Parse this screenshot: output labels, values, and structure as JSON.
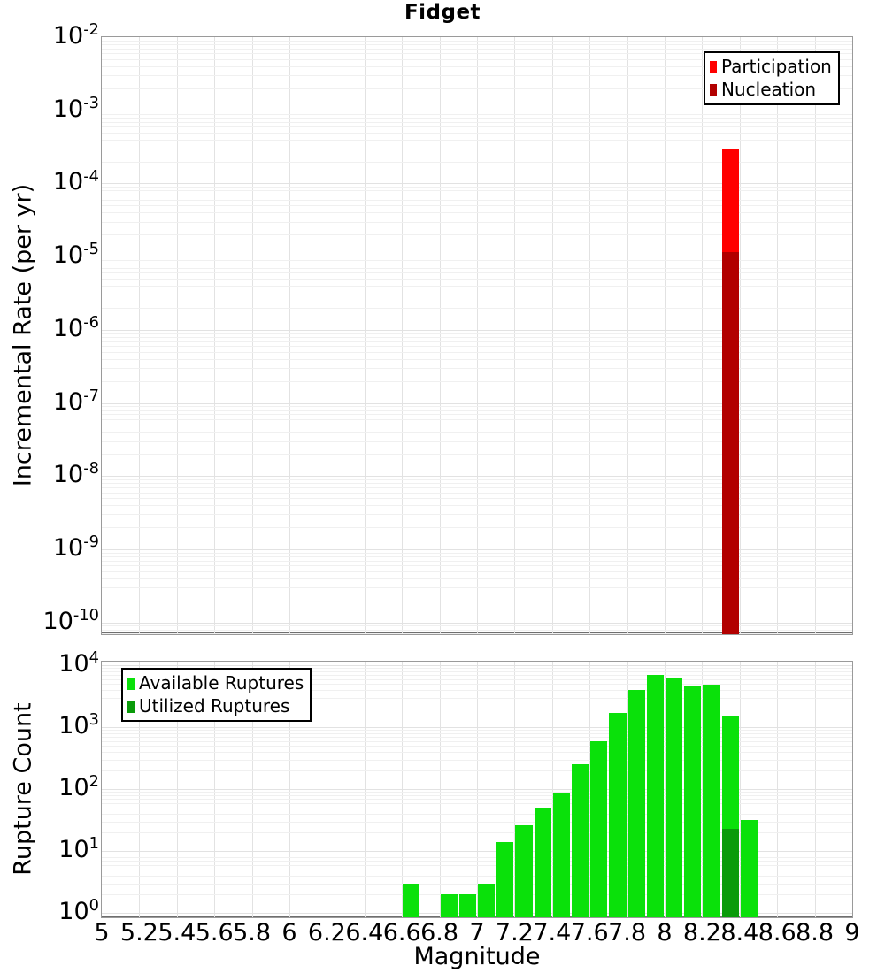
{
  "title": "Fidget",
  "colors": {
    "participation": "#ff0000",
    "nucleation": "#b20000",
    "available": "#0ae10a",
    "utilized": "#0a9b0a",
    "grid_major": "#e2e2e2",
    "grid_minor": "#f0f0f0",
    "frame": "#9a9a9a",
    "axis_line": "#6f6f6f"
  },
  "top_panel": {
    "ylabel": "Incremental Rate (per yr)",
    "legend": [
      {
        "label": "Participation",
        "color_key": "participation"
      },
      {
        "label": "Nucleation",
        "color_key": "nucleation"
      }
    ],
    "y_tick_exponents": [
      "-2",
      "-3",
      "-4",
      "-5",
      "-6",
      "-7",
      "-8",
      "-9",
      "-10"
    ]
  },
  "bottom_panel": {
    "ylabel": "Rupture Count",
    "xlabel": "Magnitude",
    "legend": [
      {
        "label": "Available Ruptures",
        "color_key": "available"
      },
      {
        "label": "Utilized Ruptures",
        "color_key": "utilized"
      }
    ],
    "y_tick_exponents": [
      "4",
      "3",
      "2",
      "1",
      "0"
    ],
    "x_ticks": [
      "5",
      "5.2",
      "5.4",
      "5.6",
      "5.8",
      "6",
      "6.2",
      "6.4",
      "6.6",
      "6.8",
      "7",
      "7.2",
      "7.4",
      "7.6",
      "7.8",
      "8",
      "8.2",
      "8.4",
      "8.6",
      "8.8",
      "9"
    ]
  },
  "chart_data": [
    {
      "panel": "incremental-rate",
      "type": "bar",
      "title": "Fidget",
      "ylabel": "Incremental Rate (per yr)",
      "yscale": "log",
      "ylim": [
        1e-10,
        0.01
      ],
      "xlim": [
        5,
        9
      ],
      "bin_width": 0.1,
      "grid": true,
      "legend_position": "top-right",
      "series": [
        {
          "name": "Participation",
          "color_key": "participation",
          "bins": [
            {
              "mag": 8.3,
              "rate": 0.0003
            }
          ]
        },
        {
          "name": "Nucleation",
          "color_key": "nucleation",
          "bins": [
            {
              "mag": 8.3,
              "rate": 1.15e-05
            }
          ]
        }
      ]
    },
    {
      "panel": "rupture-count",
      "type": "bar",
      "ylabel": "Rupture Count",
      "xlabel": "Magnitude",
      "yscale": "log",
      "ylim": [
        1,
        10000
      ],
      "xlim": [
        5,
        9
      ],
      "bin_width": 0.1,
      "grid": true,
      "legend_position": "top-left",
      "series": [
        {
          "name": "Available Ruptures",
          "color_key": "available",
          "bins": [
            {
              "mag": 6.6,
              "count": 3
            },
            {
              "mag": 6.8,
              "count": 2
            },
            {
              "mag": 6.9,
              "count": 2
            },
            {
              "mag": 7.0,
              "count": 3
            },
            {
              "mag": 7.1,
              "count": 14
            },
            {
              "mag": 7.2,
              "count": 26
            },
            {
              "mag": 7.3,
              "count": 48
            },
            {
              "mag": 7.4,
              "count": 87
            },
            {
              "mag": 7.5,
              "count": 250
            },
            {
              "mag": 7.6,
              "count": 600
            },
            {
              "mag": 7.7,
              "count": 1700
            },
            {
              "mag": 7.8,
              "count": 4000
            },
            {
              "mag": 7.9,
              "count": 6900
            },
            {
              "mag": 8.0,
              "count": 6300
            },
            {
              "mag": 8.1,
              "count": 4600
            },
            {
              "mag": 8.2,
              "count": 4800
            },
            {
              "mag": 8.3,
              "count": 1500
            },
            {
              "mag": 8.4,
              "count": 32
            }
          ]
        },
        {
          "name": "Utilized Ruptures",
          "color_key": "utilized",
          "bins": [
            {
              "mag": 8.3,
              "count": 23
            }
          ]
        }
      ]
    }
  ]
}
